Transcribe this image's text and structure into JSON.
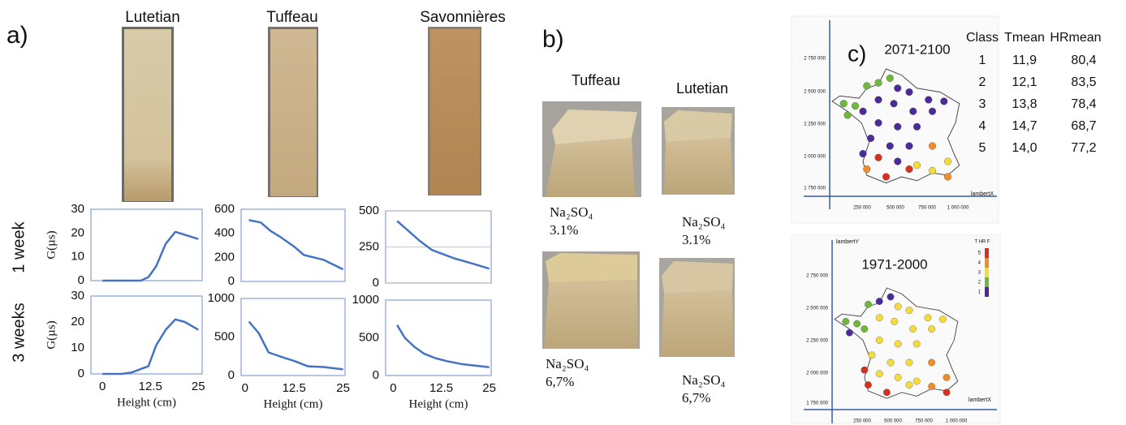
{
  "panel_a": {
    "label": "a)",
    "stones": [
      "Lutetian",
      "Tuffeau",
      "Savonnières"
    ],
    "rows": [
      "1 week",
      "3 weeks"
    ]
  },
  "chart_data": [
    {
      "type": "line",
      "ylabel": "G(µs)",
      "color": "#4472c4",
      "x": [
        0,
        5,
        10,
        12,
        14,
        16.5,
        19,
        25
      ],
      "values": [
        0,
        0,
        0,
        1.5,
        6,
        15.5,
        20.5,
        17.5
      ],
      "xlim": [
        -3,
        26
      ],
      "ylim": [
        0,
        30
      ],
      "yticks": [
        0,
        10,
        20,
        30
      ]
    },
    {
      "type": "line",
      "ylabel": "G(µs)",
      "xlabel": "Height (cm)",
      "color": "#4472c4",
      "x": [
        0,
        5,
        7.5,
        12,
        14,
        16.5,
        19,
        21.5,
        25
      ],
      "values": [
        0,
        0,
        0.5,
        3,
        11,
        17,
        21,
        20,
        17
      ],
      "xlim": [
        -3,
        26
      ],
      "ylim": [
        0,
        30
      ],
      "yticks": [
        0,
        10,
        20,
        30
      ],
      "xticks": [
        0,
        12.5,
        25
      ]
    },
    {
      "type": "line",
      "color": "#4472c4",
      "x": [
        1,
        4,
        6.5,
        9,
        12.5,
        15,
        20,
        25
      ],
      "values": [
        510,
        490,
        420,
        370,
        290,
        220,
        180,
        100
      ],
      "xlim": [
        -1,
        25.5
      ],
      "ylim": [
        0,
        600
      ],
      "yticks": [
        0,
        200,
        400,
        600
      ]
    },
    {
      "type": "line",
      "xlabel": "Height (cm)",
      "color": "#4472c4",
      "x": [
        1,
        3.5,
        6,
        10,
        12.5,
        16,
        20,
        25
      ],
      "values": [
        700,
        550,
        300,
        230,
        190,
        120,
        110,
        80
      ],
      "xlim": [
        -1,
        25.5
      ],
      "ylim": [
        0,
        1000
      ],
      "yticks": [
        0,
        500,
        1000
      ],
      "xticks": [
        0,
        12.5,
        25
      ]
    },
    {
      "type": "line",
      "color": "#4472c4",
      "grid": true,
      "x": [
        1,
        4,
        7,
        10,
        13,
        16,
        20,
        25
      ],
      "values": [
        430,
        360,
        290,
        230,
        200,
        170,
        140,
        100
      ],
      "xlim": [
        -2,
        25.5
      ],
      "ylim": [
        0,
        500
      ],
      "yticks": [
        0,
        250,
        500
      ]
    },
    {
      "type": "line",
      "xlabel": "Height (cm)",
      "color": "#4472c4",
      "x": [
        1,
        3,
        5.5,
        8,
        11,
        14,
        18,
        25
      ],
      "values": [
        670,
        500,
        380,
        290,
        230,
        190,
        150,
        110
      ],
      "xlim": [
        -2,
        25.5
      ],
      "ylim": [
        0,
        1000
      ],
      "yticks": [
        0,
        500,
        1000
      ],
      "xticks": [
        0,
        12.5,
        25
      ]
    }
  ],
  "panel_b": {
    "label": "b)",
    "columns": [
      "Tuffeau",
      "Lutetian"
    ],
    "samples": [
      {
        "salt": "Na₂SO₄",
        "content": "3.1%"
      },
      {
        "salt": "Na₂SO₄",
        "content": "3.1%"
      },
      {
        "salt": "Na₂SO₄",
        "content": "6,7%"
      },
      {
        "salt": "Na₂SO₄",
        "content": "6,7%"
      }
    ]
  },
  "panel_c": {
    "label": "c)",
    "map_top": {
      "title": "2071-2100",
      "yticks": [
        "2 750 000",
        "2 500 000",
        "2 250 000",
        "2 000 000",
        "1 750 000"
      ],
      "xticks": [
        "250 000",
        "500 000",
        "750 000",
        "1 000 000"
      ],
      "x_axis": "lambertX"
    },
    "map_bottom": {
      "title": "1971-2000",
      "y_axis": "lambertY",
      "x_axis": "lambertX",
      "legend_title": "T HR F",
      "legend_labels": [
        "5",
        "4",
        "3",
        "2",
        "1"
      ],
      "yticks": [
        "2 750 000",
        "2 500 000",
        "2 250 000",
        "2 000 000",
        "1 750 000"
      ],
      "xticks": [
        "250 000",
        "500 000",
        "750 000",
        "1 000 000"
      ]
    },
    "table": {
      "header": [
        "Class",
        "Tmean",
        "HRmean"
      ],
      "rows": [
        [
          "1",
          "11,9",
          "80,4"
        ],
        [
          "2",
          "12,1",
          "83,5"
        ],
        [
          "3",
          "13,8",
          "78,4"
        ],
        [
          "4",
          "14,7",
          "68,7"
        ],
        [
          "5",
          "14,0",
          "77,2"
        ]
      ]
    }
  }
}
